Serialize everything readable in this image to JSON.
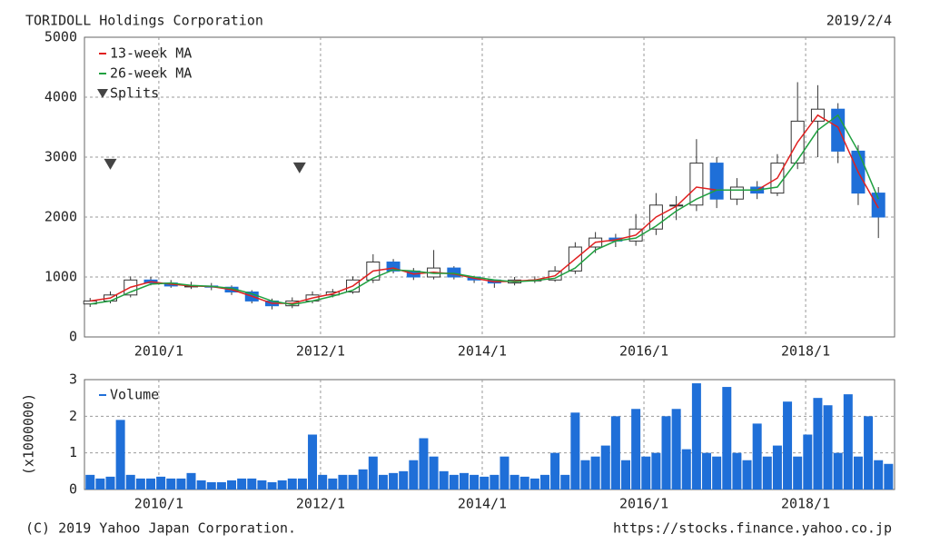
{
  "header": {
    "title": "TORIDOLL Holdings Corporation",
    "date": "2019/2/4"
  },
  "footer": {
    "copyright": "(C) 2019 Yahoo Japan Corporation.",
    "url": "https://stocks.finance.yahoo.co.jp"
  },
  "chart_data": [
    {
      "type": "candlestick",
      "x": [
        2009.15,
        2009.4,
        2009.65,
        2009.9,
        2010.15,
        2010.4,
        2010.65,
        2010.9,
        2011.15,
        2011.4,
        2011.65,
        2011.9,
        2012.15,
        2012.4,
        2012.65,
        2012.9,
        2013.15,
        2013.4,
        2013.65,
        2013.9,
        2014.15,
        2014.4,
        2014.65,
        2014.9,
        2015.15,
        2015.4,
        2015.65,
        2015.9,
        2016.15,
        2016.4,
        2016.65,
        2016.9,
        2017.15,
        2017.4,
        2017.65,
        2017.9,
        2018.15,
        2018.4,
        2018.65,
        2018.9
      ],
      "open": [
        550,
        600,
        700,
        950,
        900,
        850,
        850,
        830,
        750,
        600,
        520,
        600,
        700,
        750,
        950,
        1250,
        1100,
        1000,
        1150,
        1000,
        950,
        900,
        950,
        950,
        1100,
        1500,
        1650,
        1600,
        1800,
        2200,
        2200,
        2900,
        2300,
        2500,
        2400,
        2900,
        3600,
        3800,
        3100,
        2400
      ],
      "high": [
        650,
        760,
        1010,
        1000,
        950,
        920,
        900,
        860,
        780,
        640,
        660,
        760,
        800,
        1010,
        1380,
        1300,
        1150,
        1450,
        1180,
        1020,
        960,
        1000,
        1010,
        1180,
        1580,
        1750,
        1720,
        2050,
        2400,
        2350,
        3300,
        3000,
        2650,
        2600,
        3050,
        4250,
        4200,
        3900,
        3200,
        2500
      ],
      "low": [
        500,
        560,
        660,
        860,
        820,
        800,
        780,
        700,
        560,
        460,
        480,
        560,
        660,
        720,
        900,
        1060,
        950,
        960,
        960,
        900,
        820,
        860,
        900,
        920,
        1050,
        1400,
        1500,
        1520,
        1700,
        1950,
        2100,
        2150,
        2200,
        2300,
        2350,
        2800,
        3000,
        2900,
        2200,
        1650
      ],
      "close": [
        600,
        700,
        950,
        900,
        850,
        850,
        830,
        750,
        600,
        520,
        600,
        700,
        750,
        950,
        1250,
        1100,
        1000,
        1150,
        1000,
        950,
        900,
        950,
        950,
        1100,
        1500,
        1650,
        1600,
        1800,
        2200,
        2200,
        2900,
        2300,
        2500,
        2400,
        2900,
        3600,
        3800,
        3100,
        2400,
        2000
      ],
      "up_color": "#ffffff",
      "down_color": "#1f6fd8",
      "series": [
        {
          "name": "13-week MA",
          "color": "#e02020",
          "values": [
            600,
            650,
            830,
            920,
            880,
            850,
            840,
            790,
            680,
            560,
            560,
            650,
            720,
            850,
            1100,
            1150,
            1050,
            1080,
            1050,
            980,
            920,
            930,
            950,
            1020,
            1300,
            1580,
            1620,
            1700,
            2000,
            2180,
            2500,
            2450,
            2450,
            2450,
            2650,
            3250,
            3700,
            3500,
            2750,
            2150
          ]
        },
        {
          "name": "26-week MA",
          "color": "#20a040",
          "values": [
            550,
            600,
            750,
            880,
            900,
            860,
            845,
            810,
            720,
            600,
            540,
            600,
            680,
            780,
            980,
            1120,
            1100,
            1060,
            1060,
            1000,
            950,
            920,
            940,
            980,
            1150,
            1450,
            1600,
            1650,
            1850,
            2100,
            2300,
            2450,
            2450,
            2450,
            2500,
            2950,
            3450,
            3700,
            3100,
            2300
          ]
        }
      ],
      "splits": {
        "name": "Splits",
        "color": "#444444",
        "x": [
          2009.4,
          2011.74
        ],
        "y": [
          2880,
          2820
        ]
      },
      "xlim": [
        2009.08,
        2019.1
      ],
      "xticks": [
        {
          "value": 2010,
          "label": "2010/1"
        },
        {
          "value": 2012,
          "label": "2012/1"
        },
        {
          "value": 2014,
          "label": "2014/1"
        },
        {
          "value": 2016,
          "label": "2016/1"
        },
        {
          "value": 2018,
          "label": "2018/1"
        }
      ],
      "ylim": [
        0,
        5000
      ],
      "yticks": [
        0,
        1000,
        2000,
        3000,
        4000,
        5000
      ],
      "grid": true
    },
    {
      "type": "bar",
      "x": [
        2009.15,
        2009.275,
        2009.4,
        2009.525,
        2009.65,
        2009.775,
        2009.9,
        2010.025,
        2010.15,
        2010.275,
        2010.4,
        2010.525,
        2010.65,
        2010.775,
        2010.9,
        2011.025,
        2011.15,
        2011.275,
        2011.4,
        2011.525,
        2011.65,
        2011.775,
        2011.9,
        2012.025,
        2012.15,
        2012.275,
        2012.4,
        2012.525,
        2012.65,
        2012.775,
        2012.9,
        2013.025,
        2013.15,
        2013.275,
        2013.4,
        2013.525,
        2013.65,
        2013.775,
        2013.9,
        2014.025,
        2014.15,
        2014.275,
        2014.4,
        2014.525,
        2014.65,
        2014.775,
        2014.9,
        2015.025,
        2015.15,
        2015.275,
        2015.4,
        2015.525,
        2015.65,
        2015.775,
        2015.9,
        2016.025,
        2016.15,
        2016.275,
        2016.4,
        2016.525,
        2016.65,
        2016.775,
        2016.9,
        2017.025,
        2017.15,
        2017.275,
        2017.4,
        2017.525,
        2017.65,
        2017.775,
        2017.9,
        2018.025,
        2018.15,
        2018.275,
        2018.4,
        2018.525,
        2018.65,
        2018.775,
        2018.9,
        2019.025
      ],
      "series": [
        {
          "name": "Volume",
          "color": "#1f6fd8",
          "values": [
            0.4,
            0.3,
            0.35,
            1.9,
            0.4,
            0.3,
            0.3,
            0.35,
            0.3,
            0.3,
            0.45,
            0.25,
            0.2,
            0.2,
            0.25,
            0.3,
            0.3,
            0.25,
            0.2,
            0.25,
            0.3,
            0.3,
            1.5,
            0.4,
            0.3,
            0.4,
            0.4,
            0.55,
            0.9,
            0.4,
            0.45,
            0.5,
            0.8,
            1.4,
            0.9,
            0.5,
            0.4,
            0.45,
            0.4,
            0.35,
            0.4,
            0.9,
            0.4,
            0.35,
            0.3,
            0.4,
            1.0,
            0.4,
            2.1,
            0.8,
            0.9,
            1.2,
            2.0,
            0.8,
            2.2,
            0.9,
            1.0,
            2.0,
            2.2,
            1.1,
            2.9,
            1.0,
            0.9,
            2.8,
            1.0,
            0.8,
            1.8,
            0.9,
            1.2,
            2.4,
            0.9,
            1.5,
            2.5,
            2.3,
            1.0,
            2.6,
            0.9,
            2.0,
            0.8,
            0.7
          ]
        }
      ],
      "y_label": "(x1000000)",
      "xlim": [
        2009.08,
        2019.1
      ],
      "xticks": [
        {
          "value": 2010,
          "label": "2010/1"
        },
        {
          "value": 2012,
          "label": "2012/1"
        },
        {
          "value": 2014,
          "label": "2014/1"
        },
        {
          "value": 2016,
          "label": "2016/1"
        },
        {
          "value": 2018,
          "label": "2018/1"
        }
      ],
      "ylim": [
        0,
        3
      ],
      "yticks": [
        0,
        1,
        2,
        3
      ],
      "grid": true
    }
  ]
}
